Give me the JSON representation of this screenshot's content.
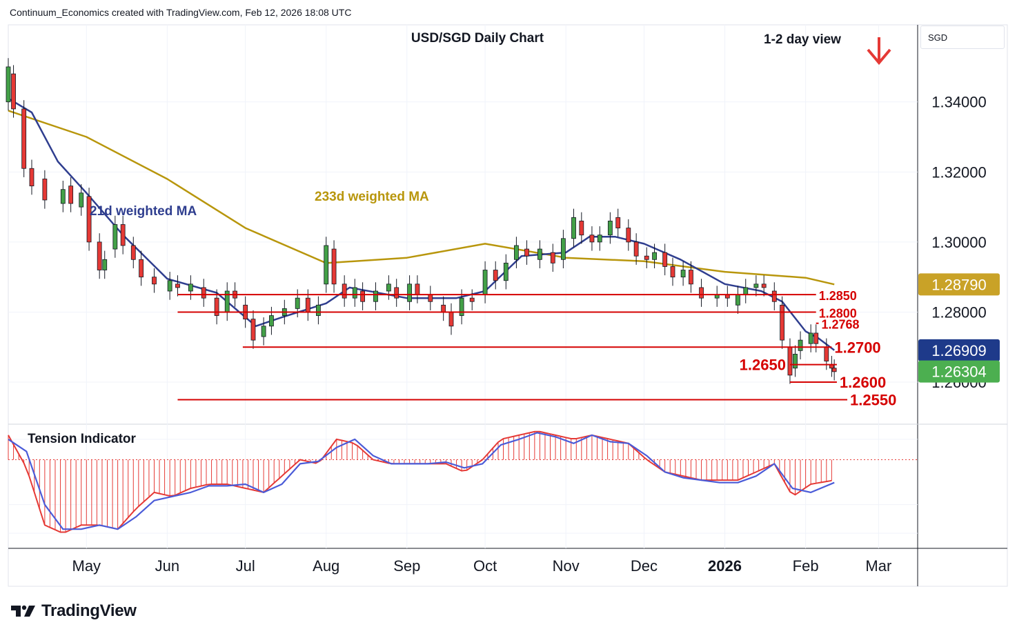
{
  "header": {
    "credit": "Continuum_Economics created with TradingView.com, Feb 12, 2026 18:08 UTC"
  },
  "footer": {
    "brand": "TradingView"
  },
  "currency_label": "SGD",
  "chart_data": [
    {
      "type": "candlestick",
      "title": "USD/SGD Daily Chart",
      "subtitle": "1-2 day view",
      "direction_marker": "arrow-down-icon",
      "ylim": [
        1.248,
        1.362
      ],
      "xlim": [
        "2025-04-01",
        "2026-03-16"
      ],
      "y_ticks": [
        "1.34000",
        "1.32000",
        "1.30000",
        "1.28000",
        "1.26000"
      ],
      "y_tick_values": [
        1.34,
        1.32,
        1.3,
        1.28,
        1.26
      ],
      "x_ticks": [
        {
          "label": "May",
          "date": "2025-05-01",
          "bold": false
        },
        {
          "label": "Jun",
          "date": "2025-06-01",
          "bold": false
        },
        {
          "label": "Jul",
          "date": "2025-07-01",
          "bold": false
        },
        {
          "label": "Aug",
          "date": "2025-08-01",
          "bold": false
        },
        {
          "label": "Sep",
          "date": "2025-09-01",
          "bold": false
        },
        {
          "label": "Oct",
          "date": "2025-10-01",
          "bold": false
        },
        {
          "label": "Nov",
          "date": "2025-11-01",
          "bold": false
        },
        {
          "label": "Dec",
          "date": "2025-12-01",
          "bold": false
        },
        {
          "label": "2026",
          "date": "2026-01-01",
          "bold": true
        },
        {
          "label": "Feb",
          "date": "2026-02-01",
          "bold": false
        },
        {
          "label": "Mar",
          "date": "2026-03-01",
          "bold": false
        }
      ],
      "price_tags": [
        {
          "value": 1.2879,
          "label": "1.28790",
          "color": "#c9a227"
        },
        {
          "value": 1.26909,
          "label": "1.26909",
          "color": "#1e3a8a"
        },
        {
          "value": 1.26304,
          "label": "1.26304",
          "color": "#4caf50"
        }
      ],
      "levels": [
        {
          "value": 1.285,
          "label": "1.2850",
          "start": "2025-06-05",
          "end": "2026-02-05",
          "label_pos": "right"
        },
        {
          "value": 1.28,
          "label": "1.2800",
          "start": "2025-06-05",
          "end": "2026-02-05",
          "label_pos": "right"
        },
        {
          "value": 1.2768,
          "label": "1.2768",
          "start": "2026-02-05",
          "end": "2026-02-06",
          "label_pos": "right",
          "small": true
        },
        {
          "value": 1.27,
          "label": "1.2700",
          "start": "2025-06-30",
          "end": "2026-02-11",
          "label_pos": "right"
        },
        {
          "value": 1.265,
          "label": "1.2650",
          "start": "2026-01-26",
          "end": "2026-02-13",
          "label_pos": "left"
        },
        {
          "value": 1.26,
          "label": "1.2600",
          "start": "2026-01-26",
          "end": "2026-02-13",
          "label_pos": "right"
        },
        {
          "value": 1.255,
          "label": "1.2550",
          "start": "2025-06-05",
          "end": "2026-02-17",
          "label_pos": "right"
        }
      ],
      "series": [
        {
          "name": "233d weighted MA",
          "color": "#b8960c",
          "points": [
            [
              "2025-04-01",
              1.3375
            ],
            [
              "2025-05-01",
              1.33
            ],
            [
              "2025-06-01",
              1.318
            ],
            [
              "2025-07-01",
              1.304
            ],
            [
              "2025-08-01",
              1.294
            ],
            [
              "2025-09-01",
              1.2955
            ],
            [
              "2025-10-01",
              1.2995
            ],
            [
              "2025-11-01",
              1.2955
            ],
            [
              "2025-12-01",
              1.2945
            ],
            [
              "2026-01-01",
              1.2915
            ],
            [
              "2026-02-01",
              1.2898
            ],
            [
              "2026-02-12",
              1.2879
            ]
          ]
        },
        {
          "name": "21d weighted MA",
          "color": "#2f3e8f",
          "points": [
            [
              "2025-04-01",
              1.341
            ],
            [
              "2025-04-10",
              1.337
            ],
            [
              "2025-04-20",
              1.323
            ],
            [
              "2025-05-01",
              1.314
            ],
            [
              "2025-05-15",
              1.302
            ],
            [
              "2025-06-01",
              1.2895
            ],
            [
              "2025-06-20",
              1.2855
            ],
            [
              "2025-07-05",
              1.276
            ],
            [
              "2025-07-15",
              1.2785
            ],
            [
              "2025-08-01",
              1.2825
            ],
            [
              "2025-08-10",
              1.287
            ],
            [
              "2025-09-01",
              1.284
            ],
            [
              "2025-09-20",
              1.284
            ],
            [
              "2025-10-01",
              1.286
            ],
            [
              "2025-10-15",
              1.296
            ],
            [
              "2025-11-01",
              1.297
            ],
            [
              "2025-11-10",
              1.3015
            ],
            [
              "2025-11-20",
              1.3015
            ],
            [
              "2025-12-01",
              1.2995
            ],
            [
              "2025-12-15",
              1.295
            ],
            [
              "2026-01-01",
              1.288
            ],
            [
              "2026-01-15",
              1.286
            ],
            [
              "2026-01-23",
              1.283
            ],
            [
              "2026-02-01",
              1.2745
            ],
            [
              "2026-02-06",
              1.2725
            ],
            [
              "2026-02-12",
              1.2691
            ]
          ]
        }
      ],
      "candles": [
        [
          "2025-04-01",
          1.34,
          1.35
        ],
        [
          "2025-04-03",
          1.348,
          1.338
        ],
        [
          "2025-04-07",
          1.338,
          1.321
        ],
        [
          "2025-04-10",
          1.321,
          1.316
        ],
        [
          "2025-04-15",
          1.318,
          1.312
        ],
        [
          "2025-04-22",
          1.311,
          1.315
        ],
        [
          "2025-04-25",
          1.316,
          1.311
        ],
        [
          "2025-04-29",
          1.31,
          1.314
        ],
        [
          "2025-05-02",
          1.313,
          1.3
        ],
        [
          "2025-05-06",
          1.3,
          1.292
        ],
        [
          "2025-05-08",
          1.292,
          1.295
        ],
        [
          "2025-05-12",
          1.298,
          1.305
        ],
        [
          "2025-05-15",
          1.305,
          1.299
        ],
        [
          "2025-05-19",
          1.299,
          1.295
        ],
        [
          "2025-05-22",
          1.295,
          1.29
        ],
        [
          "2025-05-27",
          1.29,
          1.288
        ],
        [
          "2025-06-02",
          1.286,
          1.289
        ],
        [
          "2025-06-05",
          1.288,
          1.287
        ],
        [
          "2025-06-10",
          1.286,
          1.288
        ],
        [
          "2025-06-15",
          1.287,
          1.284
        ],
        [
          "2025-06-20",
          1.284,
          1.279
        ],
        [
          "2025-06-24",
          1.28,
          1.286
        ],
        [
          "2025-06-27",
          1.286,
          1.284
        ],
        [
          "2025-07-01",
          1.282,
          1.278
        ],
        [
          "2025-07-04",
          1.278,
          1.272
        ],
        [
          "2025-07-08",
          1.273,
          1.276
        ],
        [
          "2025-07-11",
          1.276,
          1.279
        ],
        [
          "2025-07-16",
          1.279,
          1.281
        ],
        [
          "2025-07-21",
          1.281,
          1.284
        ],
        [
          "2025-07-25",
          1.284,
          1.28
        ],
        [
          "2025-07-29",
          1.279,
          1.282
        ],
        [
          "2025-08-01",
          1.288,
          1.299
        ],
        [
          "2025-08-04",
          1.298,
          1.288
        ],
        [
          "2025-08-08",
          1.288,
          1.284
        ],
        [
          "2025-08-12",
          1.284,
          1.287
        ],
        [
          "2025-08-15",
          1.286,
          1.283
        ],
        [
          "2025-08-20",
          1.283,
          1.286
        ],
        [
          "2025-08-25",
          1.286,
          1.288
        ],
        [
          "2025-08-28",
          1.287,
          1.284
        ],
        [
          "2025-09-02",
          1.283,
          1.288
        ],
        [
          "2025-09-05",
          1.288,
          1.285
        ],
        [
          "2025-09-10",
          1.285,
          1.283
        ],
        [
          "2025-09-15",
          1.282,
          1.28
        ],
        [
          "2025-09-18",
          1.28,
          1.276
        ],
        [
          "2025-09-22",
          1.279,
          1.284
        ],
        [
          "2025-09-26",
          1.284,
          1.283
        ],
        [
          "2025-10-01",
          1.285,
          1.292
        ],
        [
          "2025-10-05",
          1.292,
          1.289
        ],
        [
          "2025-10-09",
          1.289,
          1.294
        ],
        [
          "2025-10-13",
          1.295,
          1.299
        ],
        [
          "2025-10-17",
          1.298,
          1.296
        ],
        [
          "2025-10-22",
          1.295,
          1.298
        ],
        [
          "2025-10-27",
          1.297,
          1.294
        ],
        [
          "2025-10-31",
          1.295,
          1.301
        ],
        [
          "2025-11-04",
          1.301,
          1.307
        ],
        [
          "2025-11-07",
          1.306,
          1.302
        ],
        [
          "2025-11-11",
          1.302,
          1.3
        ],
        [
          "2025-11-14",
          1.3,
          1.302
        ],
        [
          "2025-11-18",
          1.302,
          1.306
        ],
        [
          "2025-11-21",
          1.307,
          1.304
        ],
        [
          "2025-11-25",
          1.304,
          1.3
        ],
        [
          "2025-11-28",
          1.3,
          1.296
        ],
        [
          "2025-12-02",
          1.296,
          1.295
        ],
        [
          "2025-12-05",
          1.295,
          1.297
        ],
        [
          "2025-12-09",
          1.297,
          1.293
        ],
        [
          "2025-12-12",
          1.293,
          1.29
        ],
        [
          "2025-12-16",
          1.29,
          1.292
        ],
        [
          "2025-12-19",
          1.292,
          1.288
        ],
        [
          "2025-12-23",
          1.287,
          1.284
        ],
        [
          "2025-12-29",
          1.284,
          1.285
        ],
        [
          "2026-01-02",
          1.285,
          1.284
        ],
        [
          "2026-01-06",
          1.282,
          1.285
        ],
        [
          "2026-01-09",
          1.285,
          1.287
        ],
        [
          "2026-01-13",
          1.287,
          1.288
        ],
        [
          "2026-01-16",
          1.288,
          1.287
        ],
        [
          "2026-01-20",
          1.286,
          1.283
        ],
        [
          "2026-01-23",
          1.282,
          1.272
        ],
        [
          "2026-01-26",
          1.27,
          1.262
        ],
        [
          "2026-01-28",
          1.264,
          1.268
        ],
        [
          "2026-01-30",
          1.269,
          1.272
        ],
        [
          "2026-02-03",
          1.271,
          1.274
        ],
        [
          "2026-02-05",
          1.274,
          1.271
        ],
        [
          "2026-02-09",
          1.27,
          1.266
        ],
        [
          "2026-02-11",
          1.265,
          1.264
        ],
        [
          "2026-02-12",
          1.264,
          1.263
        ]
      ]
    },
    {
      "type": "histogram",
      "title": "Tension Indicator",
      "ylim": [
        -1.0,
        0.35
      ],
      "zero_line": 0,
      "bar_color": "#e53935",
      "line_color": "#4a5bd8",
      "histogram": [
        [
          "2025-04-01",
          0.3
        ],
        [
          "2025-04-08",
          -0.1
        ],
        [
          "2025-04-15",
          -0.8
        ],
        [
          "2025-04-22",
          -0.9
        ],
        [
          "2025-04-29",
          -0.8
        ],
        [
          "2025-05-06",
          -0.8
        ],
        [
          "2025-05-13",
          -0.85
        ],
        [
          "2025-05-20",
          -0.6
        ],
        [
          "2025-05-27",
          -0.4
        ],
        [
          "2025-06-03",
          -0.45
        ],
        [
          "2025-06-10",
          -0.35
        ],
        [
          "2025-06-17",
          -0.3
        ],
        [
          "2025-06-24",
          -0.3
        ],
        [
          "2025-07-01",
          -0.35
        ],
        [
          "2025-07-08",
          -0.4
        ],
        [
          "2025-07-15",
          -0.2
        ],
        [
          "2025-07-22",
          0.0
        ],
        [
          "2025-07-29",
          -0.05
        ],
        [
          "2025-08-05",
          0.25
        ],
        [
          "2025-08-12",
          0.2
        ],
        [
          "2025-08-19",
          0.0
        ],
        [
          "2025-08-26",
          -0.05
        ],
        [
          "2025-09-02",
          -0.05
        ],
        [
          "2025-09-09",
          -0.05
        ],
        [
          "2025-09-16",
          -0.05
        ],
        [
          "2025-09-23",
          -0.15
        ],
        [
          "2025-09-30",
          0.0
        ],
        [
          "2025-10-07",
          0.25
        ],
        [
          "2025-10-14",
          0.3
        ],
        [
          "2025-10-21",
          0.35
        ],
        [
          "2025-10-28",
          0.3
        ],
        [
          "2025-11-04",
          0.25
        ],
        [
          "2025-11-11",
          0.3
        ],
        [
          "2025-11-18",
          0.25
        ],
        [
          "2025-11-25",
          0.2
        ],
        [
          "2025-12-02",
          0.0
        ],
        [
          "2025-12-09",
          -0.15
        ],
        [
          "2025-12-16",
          -0.2
        ],
        [
          "2025-12-23",
          -0.25
        ],
        [
          "2025-12-30",
          -0.25
        ],
        [
          "2026-01-06",
          -0.25
        ],
        [
          "2026-01-13",
          -0.15
        ],
        [
          "2026-01-20",
          -0.05
        ],
        [
          "2026-01-27",
          -0.45
        ],
        [
          "2026-02-03",
          -0.3
        ],
        [
          "2026-02-12",
          -0.25
        ]
      ],
      "signal": [
        [
          "2025-04-01",
          0.25
        ],
        [
          "2025-04-08",
          0.1
        ],
        [
          "2025-04-15",
          -0.55
        ],
        [
          "2025-04-22",
          -0.85
        ],
        [
          "2025-04-29",
          -0.85
        ],
        [
          "2025-05-06",
          -0.8
        ],
        [
          "2025-05-13",
          -0.85
        ],
        [
          "2025-05-20",
          -0.7
        ],
        [
          "2025-05-27",
          -0.5
        ],
        [
          "2025-06-03",
          -0.45
        ],
        [
          "2025-06-10",
          -0.4
        ],
        [
          "2025-06-17",
          -0.32
        ],
        [
          "2025-06-24",
          -0.32
        ],
        [
          "2025-07-01",
          -0.3
        ],
        [
          "2025-07-08",
          -0.4
        ],
        [
          "2025-07-15",
          -0.3
        ],
        [
          "2025-07-22",
          -0.05
        ],
        [
          "2025-07-29",
          -0.02
        ],
        [
          "2025-08-05",
          0.15
        ],
        [
          "2025-08-12",
          0.25
        ],
        [
          "2025-08-19",
          0.05
        ],
        [
          "2025-08-26",
          -0.05
        ],
        [
          "2025-09-02",
          -0.05
        ],
        [
          "2025-09-09",
          -0.05
        ],
        [
          "2025-09-16",
          -0.03
        ],
        [
          "2025-09-23",
          -0.1
        ],
        [
          "2025-09-30",
          -0.05
        ],
        [
          "2025-10-07",
          0.18
        ],
        [
          "2025-10-14",
          0.25
        ],
        [
          "2025-10-21",
          0.33
        ],
        [
          "2025-10-28",
          0.28
        ],
        [
          "2025-11-04",
          0.2
        ],
        [
          "2025-11-11",
          0.3
        ],
        [
          "2025-11-18",
          0.22
        ],
        [
          "2025-11-25",
          0.2
        ],
        [
          "2025-12-02",
          0.05
        ],
        [
          "2025-12-09",
          -0.15
        ],
        [
          "2025-12-16",
          -0.22
        ],
        [
          "2025-12-23",
          -0.25
        ],
        [
          "2025-12-30",
          -0.28
        ],
        [
          "2026-01-06",
          -0.28
        ],
        [
          "2026-01-13",
          -0.2
        ],
        [
          "2026-01-20",
          -0.05
        ],
        [
          "2026-01-27",
          -0.35
        ],
        [
          "2026-02-03",
          -0.4
        ],
        [
          "2026-02-12",
          -0.28
        ]
      ]
    }
  ]
}
